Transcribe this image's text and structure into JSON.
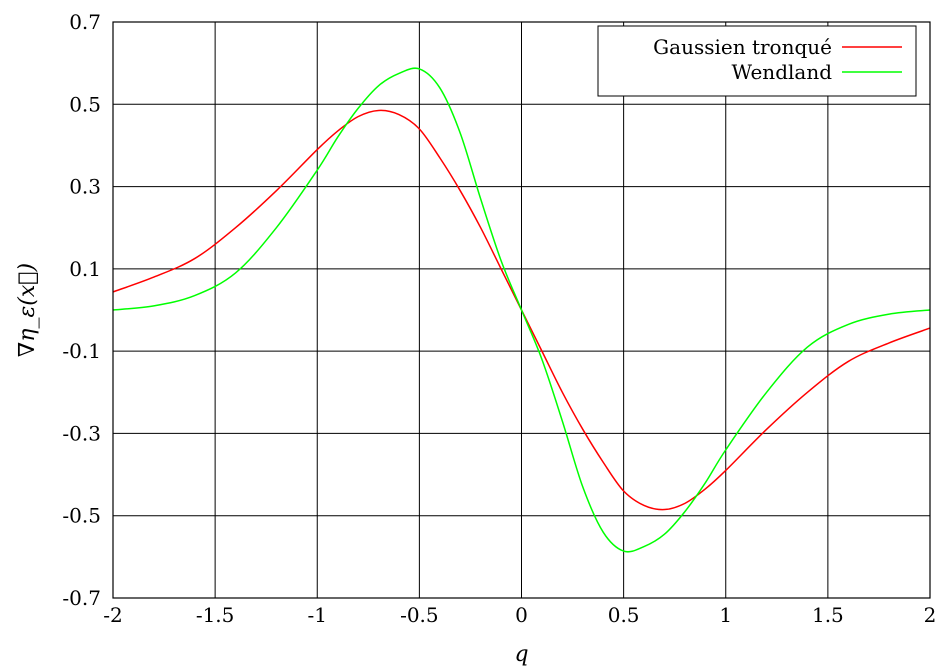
{
  "chart_data": {
    "type": "line",
    "title": "",
    "xlabel": "q",
    "ylabel": "∇η_ε(x⃗)",
    "xlim": [
      -2,
      2
    ],
    "ylim": [
      -0.7,
      0.7
    ],
    "xticks": [
      -2,
      -1.5,
      -1,
      -0.5,
      0,
      0.5,
      1,
      1.5,
      2
    ],
    "xtick_labels": [
      "-2",
      "-1.5",
      "-1",
      "-0.5",
      "0",
      "0.5",
      "1",
      "1.5",
      "2"
    ],
    "yticks": [
      -0.7,
      -0.5,
      -0.3,
      -0.1,
      0.1,
      0.3,
      0.5,
      0.7
    ],
    "ytick_labels": [
      "-0.7",
      "-0.5",
      "-0.3",
      "-0.1",
      "0.1",
      "0.3",
      "0.5",
      "0.7"
    ],
    "grid": true,
    "legend_position": "top-right",
    "series": [
      {
        "name": "Gaussien tronqué",
        "color": "#ff0000",
        "x": [
          -2,
          -1.8,
          -1.6,
          -1.4,
          -1.2,
          -1,
          -0.9,
          -0.8,
          -0.7,
          -0.6,
          -0.5,
          -0.4,
          -0.3,
          -0.2,
          -0.1,
          0,
          0.1,
          0.2,
          0.3,
          0.4,
          0.5,
          0.6,
          0.7,
          0.8,
          0.9,
          1,
          1.2,
          1.4,
          1.6,
          1.8,
          2
        ],
        "y": [
          0.044,
          0.08,
          0.125,
          0.2,
          0.29,
          0.39,
          0.435,
          0.47,
          0.485,
          0.475,
          0.44,
          0.37,
          0.29,
          0.2,
          0.1,
          0.0,
          -0.1,
          -0.2,
          -0.29,
          -0.37,
          -0.44,
          -0.475,
          -0.485,
          -0.47,
          -0.435,
          -0.39,
          -0.29,
          -0.2,
          -0.125,
          -0.08,
          -0.044
        ]
      },
      {
        "name": "Wendland",
        "color": "#00ff00",
        "x": [
          -2,
          -1.8,
          -1.6,
          -1.4,
          -1.2,
          -1,
          -0.9,
          -0.8,
          -0.7,
          -0.6,
          -0.5,
          -0.4,
          -0.3,
          -0.2,
          -0.1,
          0,
          0.1,
          0.2,
          0.3,
          0.4,
          0.5,
          0.6,
          0.7,
          0.8,
          0.9,
          1,
          1.2,
          1.4,
          1.6,
          1.8,
          2
        ],
        "y": [
          0.0,
          0.01,
          0.035,
          0.09,
          0.2,
          0.34,
          0.42,
          0.49,
          0.545,
          0.575,
          0.586,
          0.54,
          0.43,
          0.27,
          0.12,
          0.0,
          -0.12,
          -0.27,
          -0.43,
          -0.54,
          -0.586,
          -0.575,
          -0.545,
          -0.49,
          -0.42,
          -0.34,
          -0.2,
          -0.09,
          -0.035,
          -0.01,
          0.0
        ]
      }
    ]
  }
}
